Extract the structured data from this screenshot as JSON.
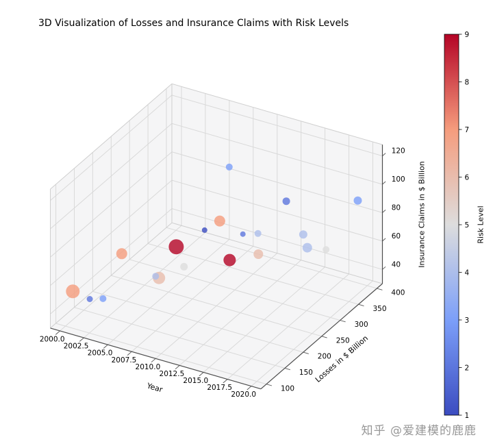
{
  "figure": {
    "watermark": "知乎 @爱建模的鹿鹿"
  },
  "colors": {
    "pane": "#f5f5f6",
    "grid": "#d9d9d9",
    "edge": "#cfcfcf",
    "axis": "#4d4d4d",
    "tick": "#555555",
    "text": "#000000",
    "watermark": "#979797",
    "colorbar_border": "#000000",
    "background": "#ffffff"
  },
  "chart_data": {
    "type": "scatter",
    "projection": "3d",
    "title": "3D Visualization of Losses and Insurance Claims with Risk Levels",
    "xlabel": "Year",
    "ylabel": "Losses in $ Billion",
    "zlabel": "Insurance Claims in $ Billion",
    "grid": true,
    "view": {
      "elev": 30,
      "azim": -60
    },
    "xlim": [
      1999,
      2021
    ],
    "ylim": [
      85,
      415
    ],
    "zlim": [
      30,
      128
    ],
    "xticks": {
      "values": [
        2000,
        2002.5,
        2005,
        2007.5,
        2010,
        2012.5,
        2015,
        2017.5,
        2020
      ],
      "labels": [
        "2000.0",
        "2002.5",
        "2005.0",
        "2007.5",
        "2010.0",
        "2012.5",
        "2015.0",
        "2017.5",
        "2020.0"
      ]
    },
    "yticks": {
      "values": [
        100,
        150,
        200,
        250,
        300,
        350,
        400
      ],
      "labels": [
        "100",
        "150",
        "200",
        "250",
        "300",
        "350",
        "400"
      ]
    },
    "zticks": {
      "values": [
        40,
        60,
        80,
        100,
        120
      ],
      "labels": [
        "40",
        "60",
        "80",
        "100",
        "120"
      ]
    },
    "colorbar": {
      "label": "Risk Level",
      "min": 1,
      "max": 9,
      "ticks": [
        1,
        2,
        3,
        4,
        5,
        6,
        7,
        8,
        9
      ],
      "colormap": "coolwarm"
    },
    "colormap_stops": [
      [
        0.0,
        "#3b4cc0"
      ],
      [
        0.25,
        "#7c9ff9"
      ],
      [
        0.5,
        "#dddddd"
      ],
      [
        0.75,
        "#f59c7d"
      ],
      [
        1.0,
        "#b40426"
      ]
    ],
    "marker_alpha": 0.8,
    "points": [
      {
        "year": 2000,
        "losses": 120,
        "claims": 50,
        "risk": 7,
        "size": 10
      },
      {
        "year": 2001,
        "losses": 140,
        "claims": 42,
        "risk": 2,
        "size": 4.5
      },
      {
        "year": 2002,
        "losses": 150,
        "claims": 42,
        "risk": 3,
        "size": 5
      },
      {
        "year": 2003,
        "losses": 175,
        "claims": 70,
        "risk": 7,
        "size": 8
      },
      {
        "year": 2004,
        "losses": 250,
        "claims": 38,
        "risk": 6,
        "size": 9
      },
      {
        "year": 2005,
        "losses": 215,
        "claims": 49,
        "risk": 4,
        "size": 5
      },
      {
        "year": 2006,
        "losses": 245,
        "claims": 65,
        "risk": 9,
        "size": 11
      },
      {
        "year": 2007,
        "losses": 240,
        "claims": 54,
        "risk": 5,
        "size": 5.5
      },
      {
        "year": 2008,
        "losses": 270,
        "claims": 75,
        "risk": 1,
        "size": 4
      },
      {
        "year": 2009,
        "losses": 285,
        "claims": 80,
        "risk": 7,
        "size": 8
      },
      {
        "year": 2010,
        "losses": 285,
        "claims": 120,
        "risk": 3,
        "size": 5
      },
      {
        "year": 2011,
        "losses": 260,
        "claims": 62,
        "risk": 9,
        "size": 9
      },
      {
        "year": 2012,
        "losses": 270,
        "claims": 80,
        "risk": 2,
        "size": 4
      },
      {
        "year": 2013,
        "losses": 285,
        "claims": 79,
        "risk": 4,
        "size": 5
      },
      {
        "year": 2014,
        "losses": 260,
        "claims": 72,
        "risk": 6,
        "size": 7
      },
      {
        "year": 2015,
        "losses": 310,
        "claims": 100,
        "risk": 2,
        "size": 5.5
      },
      {
        "year": 2016,
        "losses": 330,
        "claims": 74,
        "risk": 4,
        "size": 6
      },
      {
        "year": 2017,
        "losses": 315,
        "claims": 70,
        "risk": 4,
        "size": 7
      },
      {
        "year": 2018,
        "losses": 340,
        "claims": 65,
        "risk": 5,
        "size": 5
      },
      {
        "year": 2019,
        "losses": 400,
        "claims": 88,
        "risk": 3,
        "size": 6
      }
    ]
  }
}
